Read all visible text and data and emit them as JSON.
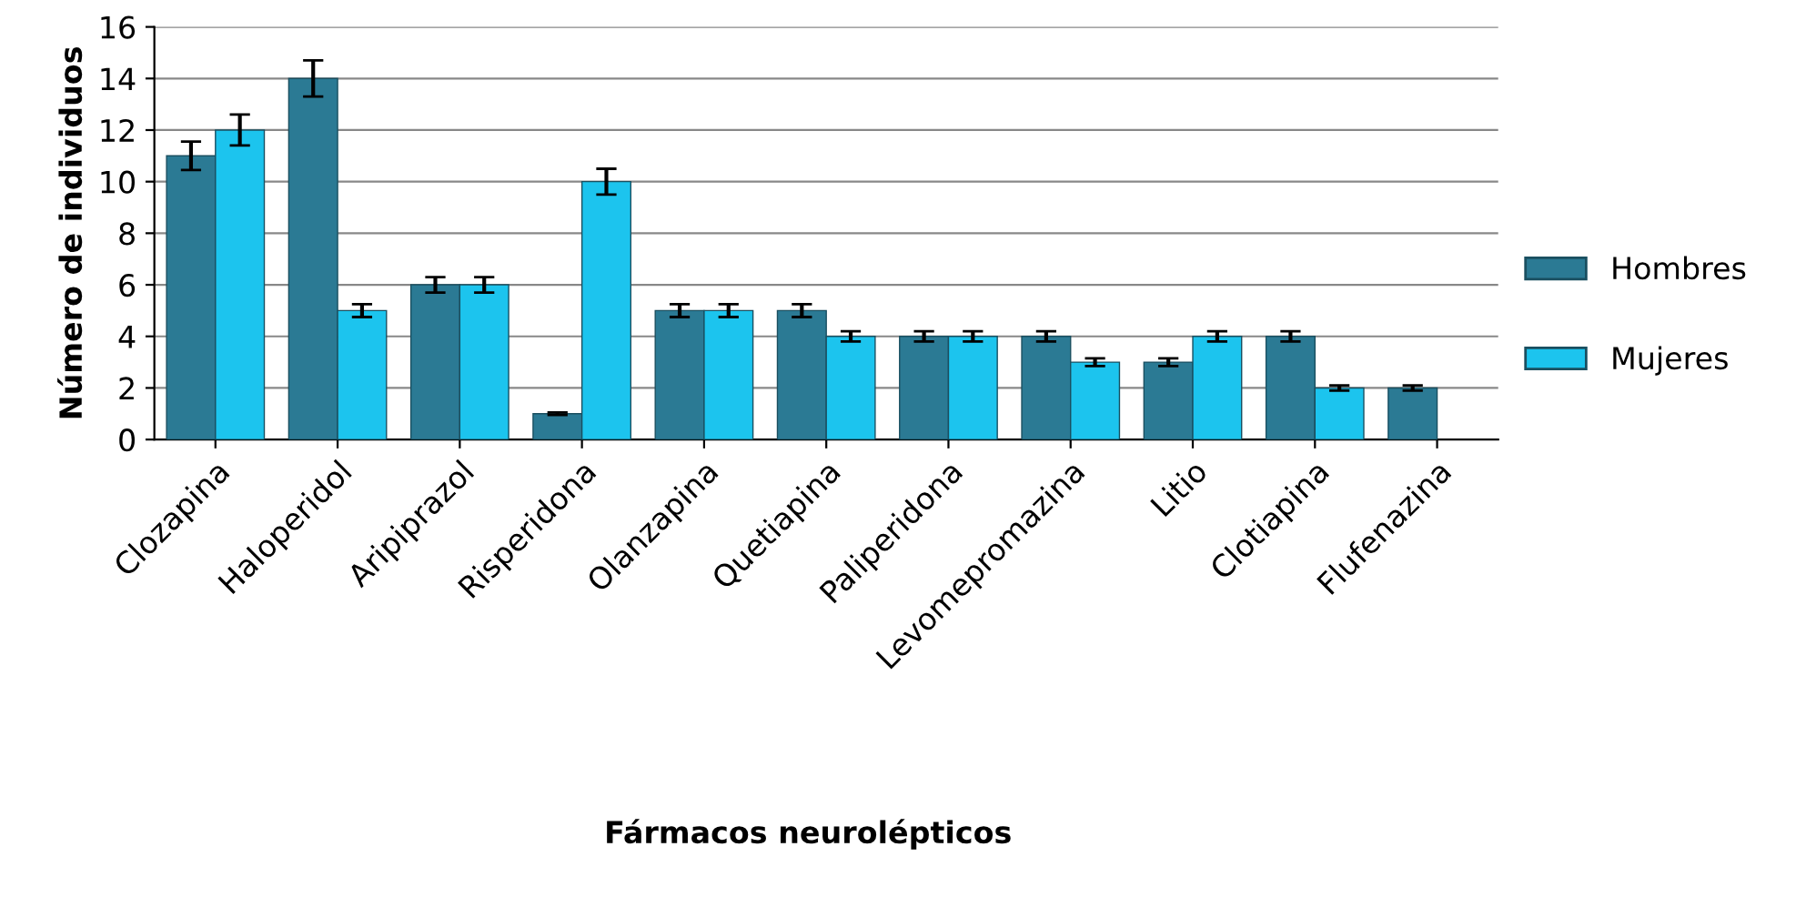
{
  "chart_data": {
    "type": "bar",
    "xlabel": "Fármacos neurolépticos",
    "ylabel": "Número de individuos",
    "categories": [
      "Clozapina",
      "Haloperidol",
      "Aripiprazol",
      "Risperidona",
      "Olanzapina",
      "Quetiapina",
      "Paliperidona",
      "Levomepromazina",
      "Litio",
      "Clotiapina",
      "Flufenazina"
    ],
    "series": [
      {
        "name": "Hombres",
        "color": "#2b7a94",
        "values": [
          11,
          14,
          6,
          1,
          5,
          5,
          4,
          4,
          3,
          4,
          2
        ],
        "errors": [
          0.55,
          0.7,
          0.3,
          0.05,
          0.25,
          0.25,
          0.2,
          0.2,
          0.15,
          0.2,
          0.1
        ]
      },
      {
        "name": "Mujeres",
        "color": "#1cc4ee",
        "values": [
          12,
          5,
          6,
          10,
          5,
          4,
          4,
          3,
          4,
          2,
          null
        ],
        "errors": [
          0.6,
          0.25,
          0.3,
          0.5,
          0.25,
          0.2,
          0.2,
          0.15,
          0.2,
          0.1,
          null
        ]
      }
    ],
    "ylim": [
      0,
      16
    ],
    "yticks": [
      0,
      2,
      4,
      6,
      8,
      10,
      12,
      14,
      16
    ],
    "grid": "y",
    "legend": "right"
  }
}
